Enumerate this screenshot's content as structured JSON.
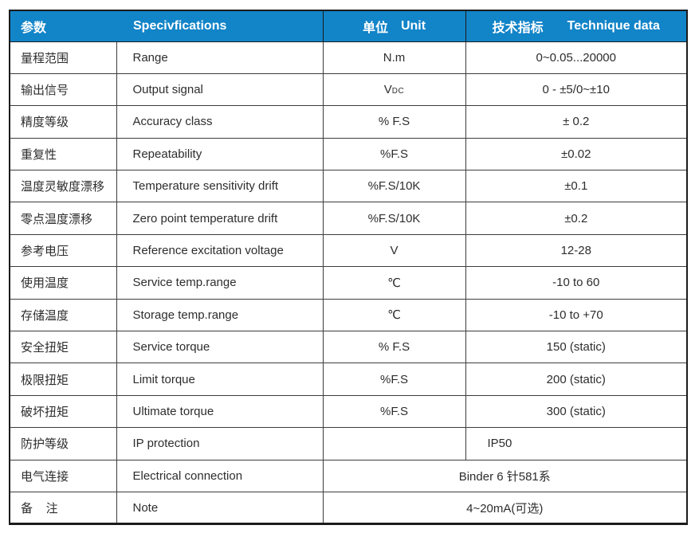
{
  "colors": {
    "header_bg": "#1284c8",
    "header_text": "#ffffff",
    "body_text": "#2d2d2d",
    "grid_line": "#3c3c3c"
  },
  "header": {
    "param_cn": "参数",
    "spec_en": "Specivfications",
    "unit_cn": "单位",
    "unit_en": "Unit",
    "tech_cn": "技术指标",
    "tech_en": "Technique data"
  },
  "rows": [
    {
      "cn": "量程范围",
      "en": "Range",
      "unit": "N.m",
      "value": "0~0.05...20000"
    },
    {
      "cn": "输出信号",
      "en": "Output signal",
      "unit": "V",
      "unit_sub": "DC",
      "value": "0 - ±5/0~±10"
    },
    {
      "cn": "精度等级",
      "en": "Accuracy class",
      "unit": "% F.S",
      "value": "± 0.2"
    },
    {
      "cn": "重复性",
      "en": "Repeatability",
      "unit": "%F.S",
      "value": "±0.02"
    },
    {
      "cn": "温度灵敏度漂移",
      "en": "Temperature sensitivity drift",
      "unit": "%F.S/10K",
      "value": "±0.1"
    },
    {
      "cn": "零点温度漂移",
      "en": "Zero point temperature drift",
      "unit": "%F.S/10K",
      "value": "±0.2"
    },
    {
      "cn": "参考电压",
      "en": "Reference excitation voltage",
      "unit": "V",
      "value": "12-28"
    },
    {
      "cn": "使用温度",
      "en": "Service temp.range",
      "unit": "℃",
      "value": "-10 to 60"
    },
    {
      "cn": "存储温度",
      "en": "Storage temp.range",
      "unit": "℃",
      "value": "-10 to +70"
    },
    {
      "cn": "安全扭矩",
      "en": "Service torque",
      "unit": "% F.S",
      "value": "150 (static)"
    },
    {
      "cn": "极限扭矩",
      "en": "Limit torque",
      "unit": "%F.S",
      "value": "200 (static)"
    },
    {
      "cn": "破坏扭矩",
      "en": "Ultimate torque",
      "unit": "%F.S",
      "value": "300 (static)"
    },
    {
      "cn": "防护等级",
      "en": "IP protection",
      "unit": "",
      "value": "IP50"
    },
    {
      "cn": "电气连接",
      "en": "Electrical connection",
      "merged_value": "Binder 6 针581系"
    },
    {
      "cn": "备    注",
      "en": "Note",
      "merged_value": "4~20mA(可选)"
    }
  ]
}
